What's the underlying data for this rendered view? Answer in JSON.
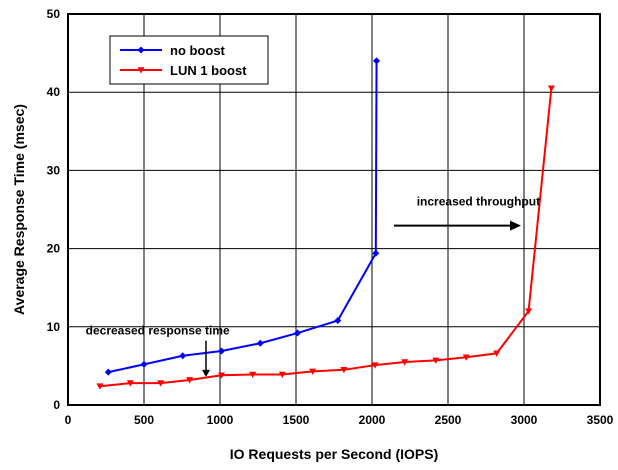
{
  "chart_data": {
    "type": "line",
    "xlabel": "IO Requests per Second (IOPS)",
    "ylabel": "Average Response Time (msec)",
    "xlim": [
      0,
      3500
    ],
    "ylim": [
      0,
      50
    ],
    "xticks": [
      0,
      500,
      1000,
      1500,
      2000,
      2500,
      3000,
      3500
    ],
    "yticks": [
      0,
      10,
      20,
      30,
      40,
      50
    ],
    "grid": true,
    "legend_position": "top-left",
    "series": [
      {
        "name": "no boost",
        "color": "#0000ff",
        "marker": "diamond",
        "x": [
          265,
          500,
          755,
          1010,
          1265,
          1510,
          1775,
          2025,
          2030
        ],
        "y": [
          4.2,
          5.2,
          6.3,
          6.9,
          7.9,
          9.2,
          10.8,
          19.4,
          44.0
        ]
      },
      {
        "name": "LUN 1 boost",
        "color": "#ff0000",
        "marker": "triangle-down",
        "x": [
          210,
          410,
          610,
          800,
          1010,
          1215,
          1410,
          1610,
          1815,
          2020,
          2215,
          2420,
          2620,
          2820,
          3030,
          3180
        ],
        "y": [
          2.4,
          2.8,
          2.8,
          3.2,
          3.8,
          3.9,
          3.9,
          4.3,
          4.5,
          5.1,
          5.5,
          5.7,
          6.1,
          6.6,
          12.0,
          40.5
        ]
      }
    ],
    "annotations": [
      {
        "text": "increased throughput",
        "x": 2700,
        "y": 25.5,
        "arrow": "right"
      },
      {
        "text": "decreased response time",
        "x": 590,
        "y": 9.0,
        "arrow": "down"
      }
    ]
  }
}
